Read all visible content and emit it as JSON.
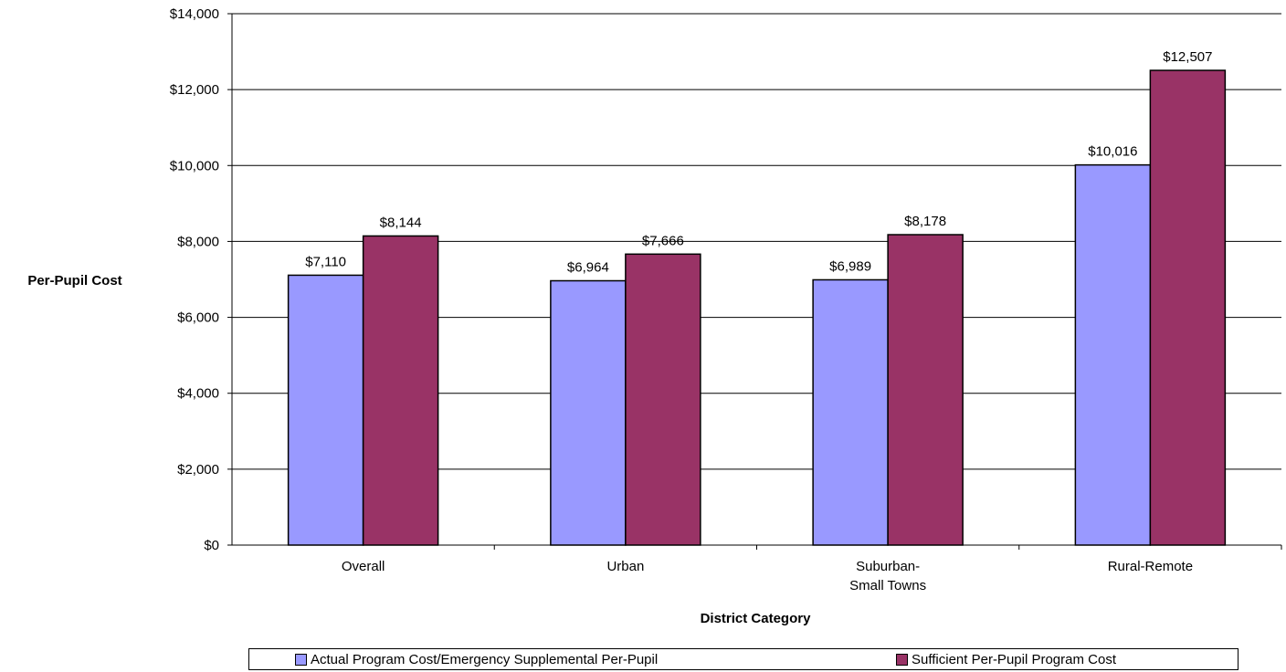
{
  "chart_data": {
    "type": "bar",
    "categories": [
      "Overall",
      "Urban",
      "Suburban-\nSmall Towns",
      "Rural-Remote"
    ],
    "series": [
      {
        "name": "Actual Program Cost/Emergency Supplemental Per-Pupil",
        "values": [
          7110,
          6964,
          6989,
          10016
        ],
        "labels": [
          "$7,110",
          "$6,964",
          "$6,989",
          "$10,016"
        ],
        "color": "#9999ff"
      },
      {
        "name": "Sufficient Per-Pupil Program Cost",
        "values": [
          8144,
          7666,
          8178,
          12507
        ],
        "labels": [
          "$8,144",
          "$7,666",
          "$8,178",
          "$12,507"
        ],
        "color": "#993366"
      }
    ],
    "ylim": [
      0,
      14000
    ],
    "yticks": [
      "$0",
      "$2,000",
      "$4,000",
      "$6,000",
      "$8,000",
      "$10,000",
      "$12,000",
      "$14,000"
    ],
    "ylabel": "Per-Pupil Cost",
    "xlabel": "District Category",
    "grid": true,
    "legend": "bottom"
  }
}
